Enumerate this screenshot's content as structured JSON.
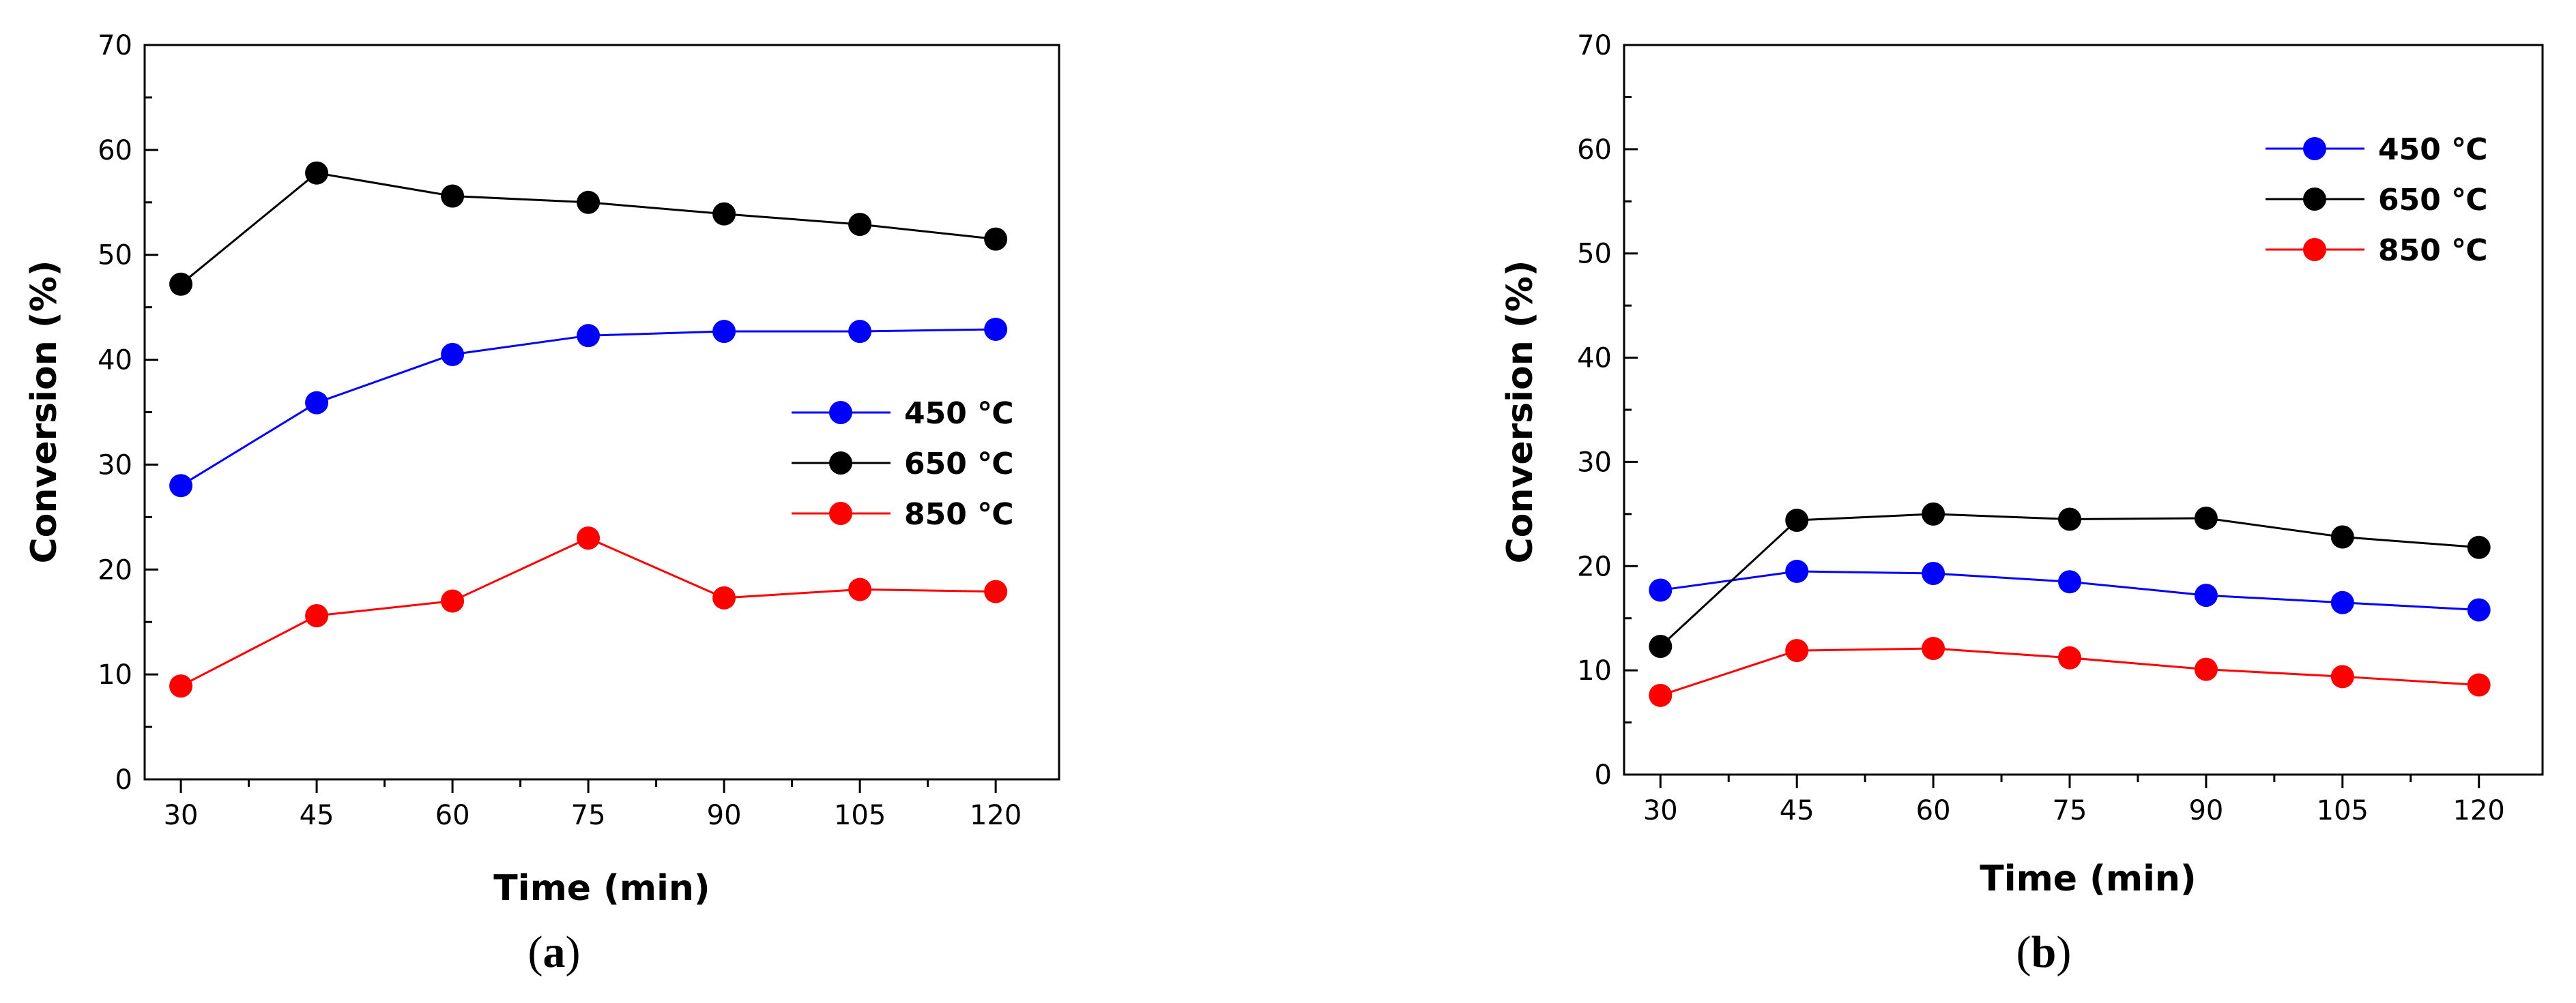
{
  "figure": {
    "panel_a_label": "a",
    "panel_b_label": "b"
  },
  "colors": {
    "450": "#0000ff",
    "650": "#000000",
    "850": "#ff0000"
  },
  "chart_data": [
    {
      "type": "line",
      "panel": "a",
      "title": "",
      "xlabel": "Time (min)",
      "ylabel": "Conversion (%)",
      "x": [
        30,
        45,
        60,
        75,
        90,
        105,
        120
      ],
      "xticks": [
        "30",
        "45",
        "60",
        "75",
        "90",
        "105",
        "120"
      ],
      "xlim": [
        26,
        127
      ],
      "ylim": [
        0,
        70
      ],
      "yticks": [
        "0",
        "10",
        "20",
        "30",
        "40",
        "50",
        "60",
        "70"
      ],
      "legend_position": "middle-right",
      "series": [
        {
          "name": "450 ℃",
          "color": "#0000ff",
          "values": [
            28.0,
            35.9,
            40.5,
            42.3,
            42.7,
            42.7,
            42.9
          ]
        },
        {
          "name": "650 ℃",
          "color": "#000000",
          "values": [
            47.2,
            57.8,
            55.6,
            55.0,
            53.9,
            52.9,
            51.5
          ]
        },
        {
          "name": "850 ℃",
          "color": "#ff0000",
          "values": [
            8.9,
            15.6,
            17.0,
            23.0,
            17.3,
            18.1,
            17.9
          ]
        }
      ]
    },
    {
      "type": "line",
      "panel": "b",
      "title": "",
      "xlabel": "Time (min)",
      "ylabel": "Conversion (%)",
      "x": [
        30,
        45,
        60,
        75,
        90,
        105,
        120
      ],
      "xticks": [
        "30",
        "45",
        "60",
        "75",
        "90",
        "105",
        "120"
      ],
      "xlim": [
        26,
        127
      ],
      "ylim": [
        0,
        70
      ],
      "yticks": [
        "0",
        "10",
        "20",
        "30",
        "40",
        "50",
        "60",
        "70"
      ],
      "legend_position": "top-right",
      "series": [
        {
          "name": "450 ℃",
          "color": "#0000ff",
          "values": [
            17.7,
            19.5,
            19.3,
            18.5,
            17.2,
            16.5,
            15.8
          ]
        },
        {
          "name": "650 ℃",
          "color": "#000000",
          "values": [
            12.3,
            24.4,
            25.0,
            24.5,
            24.6,
            22.8,
            21.8
          ]
        },
        {
          "name": "850 ℃",
          "color": "#ff0000",
          "values": [
            7.6,
            11.9,
            12.1,
            11.2,
            10.1,
            9.4,
            8.6
          ]
        }
      ]
    }
  ]
}
